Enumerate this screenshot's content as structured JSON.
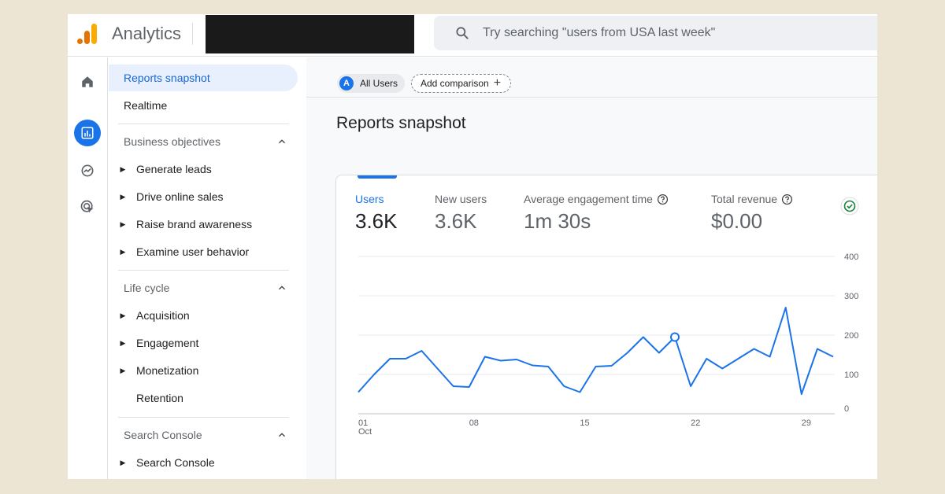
{
  "app": {
    "product_name": "Analytics"
  },
  "search": {
    "placeholder": "Try searching \"users from USA last week\""
  },
  "rail": {
    "items": [
      "home-icon",
      "reports-icon",
      "explore-icon",
      "advertising-icon"
    ],
    "active_index": 1
  },
  "sidebar": {
    "reports_snapshot": "Reports snapshot",
    "realtime": "Realtime",
    "business_objectives": {
      "title": "Business objectives",
      "items": [
        "Generate leads",
        "Drive online sales",
        "Raise brand awareness",
        "Examine user behavior"
      ]
    },
    "life_cycle": {
      "title": "Life cycle",
      "items": [
        "Acquisition",
        "Engagement",
        "Monetization"
      ],
      "retention": "Retention"
    },
    "search_console": {
      "title": "Search Console",
      "items": [
        "Search Console"
      ]
    }
  },
  "main": {
    "chip_avatar": "A",
    "chip_all_users": "All Users",
    "add_comparison": "Add comparison",
    "add_icon": "+",
    "title": "Reports snapshot"
  },
  "metrics": [
    {
      "label": "Users",
      "value": "3.6K",
      "active": true
    },
    {
      "label": "New users",
      "value": "3.6K"
    },
    {
      "label": "Average engagement time",
      "value": "1m 30s",
      "help": true
    },
    {
      "label": "Total revenue",
      "value": "$0.00",
      "help": true
    }
  ],
  "colors": {
    "accent": "#1a73e8",
    "line": "#1a73e8",
    "check": "#188038"
  },
  "chart_data": {
    "type": "line",
    "x": [
      "Oct 1",
      "Oct 2",
      "Oct 3",
      "Oct 4",
      "Oct 5",
      "Oct 6",
      "Oct 7",
      "Oct 8",
      "Oct 9",
      "Oct 10",
      "Oct 11",
      "Oct 12",
      "Oct 13",
      "Oct 14",
      "Oct 15",
      "Oct 16",
      "Oct 17",
      "Oct 18",
      "Oct 19",
      "Oct 20",
      "Oct 21",
      "Oct 22",
      "Oct 23",
      "Oct 24",
      "Oct 25",
      "Oct 26",
      "Oct 27",
      "Oct 28",
      "Oct 29",
      "Oct 30",
      "Oct 31"
    ],
    "x_ticks": [
      {
        "label": "01",
        "sub": "Oct",
        "index": 0
      },
      {
        "label": "08",
        "index": 7
      },
      {
        "label": "15",
        "index": 14
      },
      {
        "label": "22",
        "index": 21
      },
      {
        "label": "29",
        "index": 28
      }
    ],
    "series": [
      {
        "values": [
          55,
          100,
          140,
          140,
          160,
          115,
          70,
          68,
          145,
          135,
          138,
          123,
          120,
          70,
          55,
          120,
          122,
          155,
          195,
          155,
          195,
          70,
          140,
          115,
          140,
          165,
          145,
          270,
          50,
          165,
          145
        ]
      }
    ],
    "highlight_index": 20,
    "y_ticks": [
      0,
      100,
      200,
      300,
      400
    ],
    "ylim": [
      0,
      400
    ],
    "grid": true,
    "y_axis_side": "right"
  }
}
